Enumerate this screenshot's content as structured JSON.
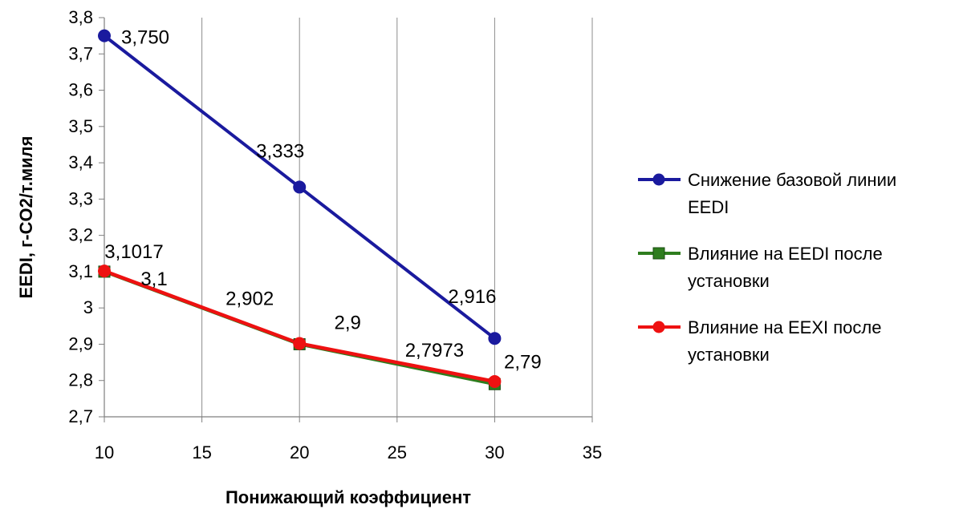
{
  "chart_data": {
    "type": "scatter-line",
    "xlabel": "Понижающий коэффициент",
    "ylabel": "EEDI, г-CO2/т.миля",
    "xlim": [
      10,
      35
    ],
    "ylim": [
      2.7,
      3.8
    ],
    "x_ticks": [
      "10",
      "15",
      "20",
      "25",
      "30",
      "35"
    ],
    "y_ticks": [
      "2,7",
      "2,8",
      "2,9",
      "3",
      "3,1",
      "3,2",
      "3,3",
      "3,4",
      "3,5",
      "3,6",
      "3,7",
      "3,8"
    ],
    "grid": {
      "vertical": true,
      "horizontal": false
    },
    "legend_position": "right",
    "series": [
      {
        "name": "Снижение базовой линии EEDI",
        "legend_lines": [
          "Снижение базовой линии",
          "EEDI"
        ],
        "color": "#1a1a9e",
        "marker": "circle",
        "x": [
          10,
          20,
          30
        ],
        "y": [
          3.75,
          3.333,
          2.916
        ],
        "labels": [
          "3,750",
          "3,333",
          "2,916"
        ]
      },
      {
        "name": "Влияние на EEDI после установки",
        "legend_lines": [
          "Влияние на EEDI после",
          "установки"
        ],
        "color": "#2e7d1e",
        "marker": "square",
        "x": [
          10,
          20,
          30
        ],
        "y": [
          3.1,
          2.9,
          2.79
        ],
        "labels": [
          "3,1",
          "2,9",
          "2,79"
        ]
      },
      {
        "name": "Влияние на EEXI после установки",
        "legend_lines": [
          "Влияние на EEXI после",
          "установки"
        ],
        "color": "#ee1111",
        "marker": "circle",
        "x": [
          10,
          20,
          30
        ],
        "y": [
          3.1017,
          2.902,
          2.7973
        ],
        "labels": [
          "3,1017",
          "2,902",
          "2,7973"
        ]
      }
    ]
  }
}
